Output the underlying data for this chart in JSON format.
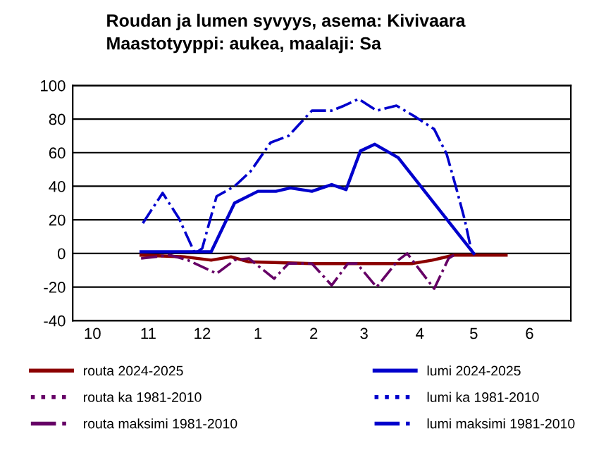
{
  "chart_data": {
    "type": "line",
    "title": "Roudan ja lumen syvyys, asema: Kivivaara\nMaastotyyppi: aukea, maalaji: Sa",
    "series": [
      {
        "name": "routa 2024-2025",
        "color": "#8b0000",
        "line_style": "solid",
        "x": [
          "2024-10-28",
          "2024-11-21",
          "2024-12-06",
          "2024-12-17",
          "2024-12-27",
          "2025-01-31",
          "2025-03-02",
          "2025-03-28",
          "2025-04-08",
          "2025-04-20",
          "2025-05-19"
        ],
        "values": [
          -1,
          -2,
          -4,
          -2,
          -5,
          -6,
          -6,
          -6,
          -4,
          -1,
          -1
        ]
      },
      {
        "name": "routa ka 1981-2010",
        "color": "#660066",
        "line_style": "dotted"
      },
      {
        "name": "routa maksimi 1981-2010",
        "color": "#660066",
        "line_style": "dashdot",
        "x": [
          "2024-10-28",
          "2024-11-13",
          "2024-11-23",
          "2024-12-09",
          "2024-12-19",
          "2024-12-27",
          "2025-01-10",
          "2025-01-18",
          "2025-01-31",
          "2025-02-11",
          "2025-02-20",
          "2025-02-25",
          "2025-03-08",
          "2025-03-20",
          "2025-03-25",
          "2025-04-09",
          "2025-04-17",
          "2025-04-20"
        ],
        "values": [
          -3,
          -1,
          -4,
          -12,
          -4,
          -3,
          -15,
          -6,
          -6,
          -19,
          -6,
          -6,
          -20,
          -4,
          0,
          -21,
          -3,
          -1
        ]
      },
      {
        "name": "lumi 2024-2025",
        "color": "#0000cc",
        "line_style": "solid",
        "x": [
          "2024-10-28",
          "2024-12-06",
          "2024-12-19",
          "2025-01-01",
          "2025-01-11",
          "2025-01-19",
          "2025-01-31",
          "2025-02-11",
          "2025-02-19",
          "2025-02-27",
          "2025-03-07",
          "2025-03-20",
          "2025-05-01"
        ],
        "values": [
          1,
          1,
          30,
          37,
          37,
          39,
          37,
          41,
          38,
          61,
          65,
          57,
          0
        ]
      },
      {
        "name": "lumi ka 1981-2010",
        "color": "#0000cc",
        "line_style": "dotted"
      },
      {
        "name": "lumi maksimi 1981-2010",
        "color": "#0000cc",
        "line_style": "dashdot",
        "x": [
          "2024-10-29",
          "2024-11-09",
          "2024-11-18",
          "2024-11-27",
          "2024-12-01",
          "2024-12-09",
          "2024-12-19",
          "2024-12-28",
          "2025-01-08",
          "2025-01-18",
          "2025-01-31",
          "2025-02-11",
          "2025-02-18",
          "2025-02-26",
          "2025-03-08",
          "2025-03-19",
          "2025-03-30",
          "2025-04-09",
          "2025-04-16",
          "2025-04-21",
          "2025-04-26",
          "2025-04-30"
        ],
        "values": [
          18,
          36,
          21,
          0,
          3,
          34,
          40,
          49,
          66,
          70,
          85,
          85,
          88,
          92,
          85,
          88,
          81,
          74,
          59,
          40,
          20,
          0
        ]
      }
    ],
    "xlim": [
      "2024-09-20",
      "2025-06-24"
    ],
    "xticks": [
      {
        "value": "2024-10-01",
        "label": "10"
      },
      {
        "value": "2024-11-01",
        "label": "11"
      },
      {
        "value": "2024-12-01",
        "label": "12"
      },
      {
        "value": "2025-01-01",
        "label": "1"
      },
      {
        "value": "2025-02-01",
        "label": "2"
      },
      {
        "value": "2025-03-01",
        "label": "3"
      },
      {
        "value": "2025-04-01",
        "label": "4"
      },
      {
        "value": "2025-05-01",
        "label": "5"
      },
      {
        "value": "2025-06-01",
        "label": "6"
      }
    ],
    "ylim": [
      -40,
      100
    ],
    "yticks": [
      -40,
      -20,
      0,
      20,
      40,
      60,
      80,
      100
    ],
    "grid": "y",
    "legend": "bottom"
  }
}
